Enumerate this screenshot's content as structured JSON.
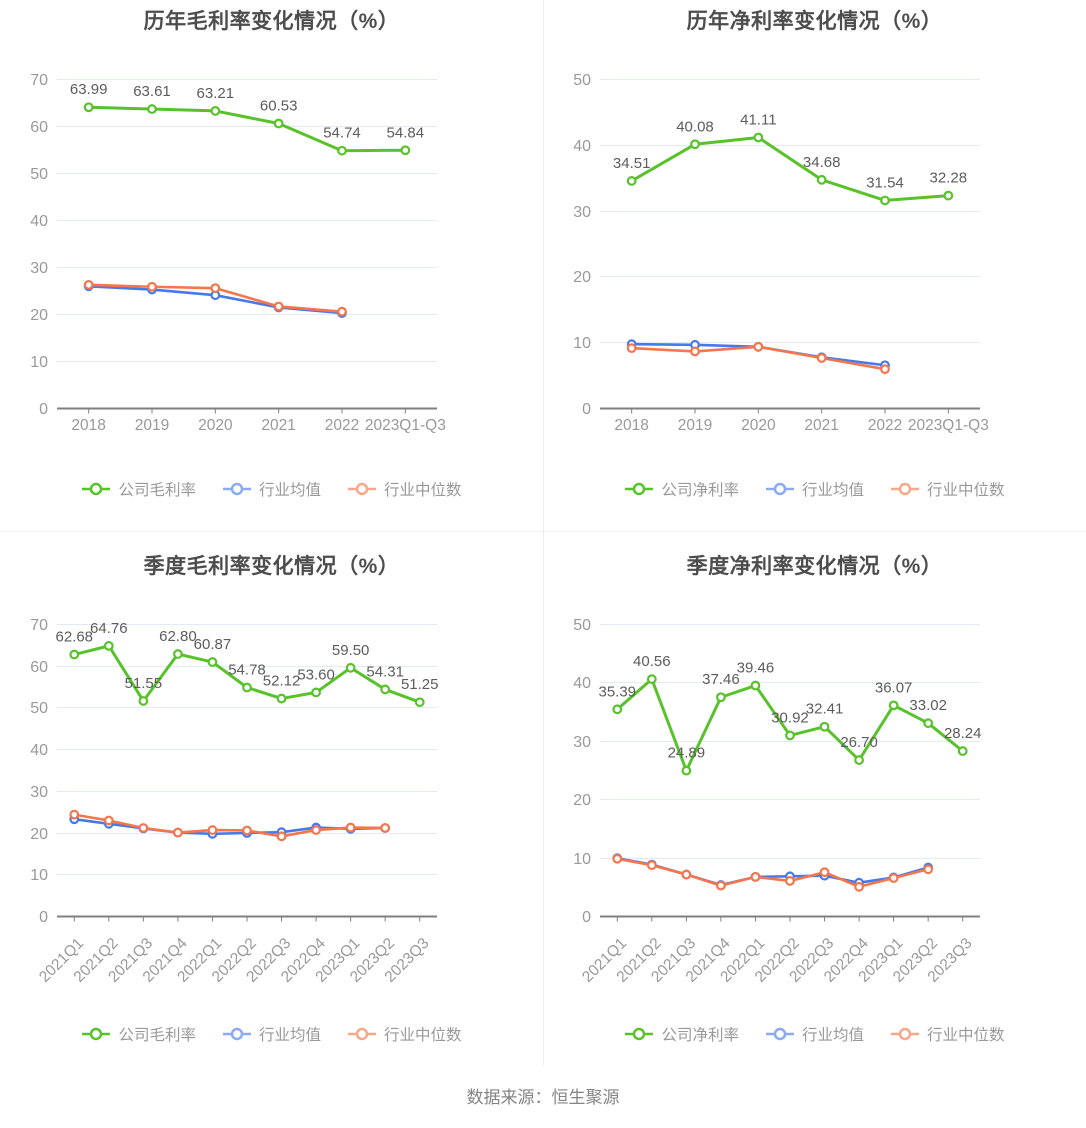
{
  "page": {
    "source_text": "数据来源：恒生聚源"
  },
  "colors": {
    "company_green": "#58c22a",
    "industry_avg_blue": "#4679ec",
    "industry_median_orange": "#f4764d",
    "legend_blue": "#8aabf3",
    "legend_orange": "#f8a88a",
    "grid_line": "#e4e9f5",
    "axis_line": "#7f7f7f",
    "tick_label": "#999999",
    "data_label": "#5c5c5c",
    "title": "#4d4d4d",
    "source": "#848484"
  },
  "chart_data": [
    {
      "type": "line",
      "title": "历年毛利率变化情况（%）",
      "categories": [
        "2018",
        "2019",
        "2020",
        "2021",
        "2022",
        "2023Q1-Q3"
      ],
      "ylim": [
        0,
        70
      ],
      "ytick_interval": 10,
      "grid": true,
      "legend_position": "bottom",
      "x_label_rotate": 0,
      "series": [
        {
          "name": "公司毛利率",
          "color_key": "company_green",
          "show_labels": true,
          "values": [
            63.99,
            63.61,
            63.21,
            60.53,
            54.74,
            54.84
          ]
        },
        {
          "name": "行业均值",
          "color_key": "industry_avg_blue",
          "legend_color_key": "legend_blue",
          "show_labels": false,
          "values": [
            25.9,
            25.2,
            24.0,
            21.4,
            20.2,
            null
          ]
        },
        {
          "name": "行业中位数",
          "color_key": "industry_median_orange",
          "legend_color_key": "legend_orange",
          "show_labels": false,
          "values": [
            26.2,
            25.8,
            25.5,
            21.6,
            20.5,
            null
          ]
        }
      ]
    },
    {
      "type": "line",
      "title": "历年净利率变化情况（%）",
      "categories": [
        "2018",
        "2019",
        "2020",
        "2021",
        "2022",
        "2023Q1-Q3"
      ],
      "ylim": [
        0,
        50
      ],
      "ytick_interval": 10,
      "grid": true,
      "legend_position": "bottom",
      "x_label_rotate": 0,
      "series": [
        {
          "name": "公司净利率",
          "color_key": "company_green",
          "show_labels": true,
          "values": [
            34.51,
            40.08,
            41.11,
            34.68,
            31.54,
            32.28
          ]
        },
        {
          "name": "行业均值",
          "color_key": "industry_avg_blue",
          "legend_color_key": "legend_blue",
          "show_labels": false,
          "values": [
            9.7,
            9.6,
            9.3,
            7.7,
            6.5,
            null
          ]
        },
        {
          "name": "行业中位数",
          "color_key": "industry_median_orange",
          "legend_color_key": "legend_orange",
          "show_labels": false,
          "values": [
            9.1,
            8.6,
            9.3,
            7.6,
            5.9,
            null
          ]
        }
      ]
    },
    {
      "type": "line",
      "title": "季度毛利率变化情况（%）",
      "categories": [
        "2021Q1",
        "2021Q2",
        "2021Q3",
        "2021Q4",
        "2022Q1",
        "2022Q2",
        "2022Q3",
        "2022Q4",
        "2023Q1",
        "2023Q2",
        "2023Q3"
      ],
      "ylim": [
        0,
        70
      ],
      "ytick_interval": 10,
      "grid": true,
      "legend_position": "bottom",
      "x_label_rotate": 45,
      "series": [
        {
          "name": "公司毛利率",
          "color_key": "company_green",
          "show_labels": true,
          "values": [
            62.68,
            64.76,
            51.55,
            62.8,
            60.87,
            54.78,
            52.12,
            53.6,
            59.5,
            54.31,
            51.25
          ]
        },
        {
          "name": "行业均值",
          "color_key": "industry_avg_blue",
          "legend_color_key": "legend_blue",
          "show_labels": false,
          "values": [
            23.2,
            22.1,
            21.0,
            20.0,
            19.7,
            19.9,
            20.1,
            21.2,
            20.9,
            21.1,
            null
          ]
        },
        {
          "name": "行业中位数",
          "color_key": "industry_median_orange",
          "legend_color_key": "legend_orange",
          "show_labels": false,
          "values": [
            24.3,
            22.9,
            21.1,
            20.0,
            20.6,
            20.5,
            19.1,
            20.6,
            21.2,
            21.1,
            null
          ]
        }
      ]
    },
    {
      "type": "line",
      "title": "季度净利率变化情况（%）",
      "categories": [
        "2021Q1",
        "2021Q2",
        "2021Q3",
        "2021Q4",
        "2022Q1",
        "2022Q2",
        "2022Q3",
        "2022Q4",
        "2023Q1",
        "2023Q2",
        "2023Q3"
      ],
      "ylim": [
        0,
        50
      ],
      "ytick_interval": 10,
      "grid": true,
      "legend_position": "bottom",
      "x_label_rotate": 45,
      "series": [
        {
          "name": "公司净利率",
          "color_key": "company_green",
          "show_labels": true,
          "values": [
            35.39,
            40.56,
            24.89,
            37.46,
            39.46,
            30.92,
            32.41,
            26.7,
            36.07,
            33.02,
            28.24
          ]
        },
        {
          "name": "行业均值",
          "color_key": "industry_avg_blue",
          "legend_color_key": "legend_blue",
          "show_labels": false,
          "values": [
            9.9,
            8.8,
            7.1,
            5.3,
            6.7,
            6.8,
            6.9,
            5.7,
            6.6,
            8.3,
            null
          ]
        },
        {
          "name": "行业中位数",
          "color_key": "industry_median_orange",
          "legend_color_key": "legend_orange",
          "show_labels": false,
          "values": [
            9.8,
            8.7,
            7.1,
            5.2,
            6.7,
            6.0,
            7.5,
            5.0,
            6.5,
            8.0,
            null
          ]
        }
      ]
    }
  ]
}
